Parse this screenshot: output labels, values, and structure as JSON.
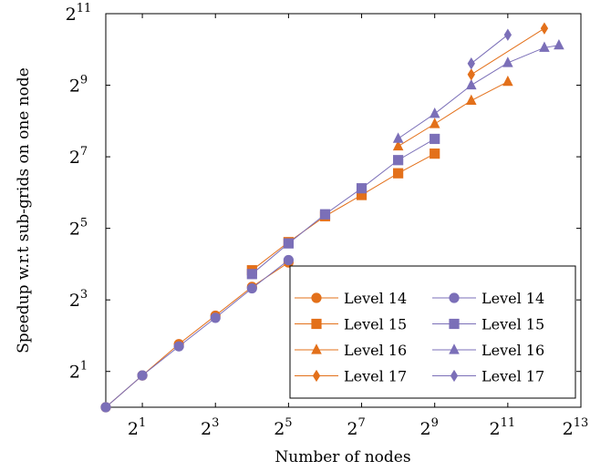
{
  "chart_data": {
    "type": "line",
    "xlabel": "Number of nodes",
    "ylabel": "Speedup w.r.t sub-grids on one node",
    "xscale": "log2",
    "yscale": "log2",
    "xlim_log2": [
      0,
      13
    ],
    "ylim_log2": [
      0,
      11
    ],
    "xticks": [
      {
        "base": "2",
        "exp": "1",
        "value": 2
      },
      {
        "base": "2",
        "exp": "3",
        "value": 8
      },
      {
        "base": "2",
        "exp": "5",
        "value": 32
      },
      {
        "base": "2",
        "exp": "7",
        "value": 128
      },
      {
        "base": "2",
        "exp": "9",
        "value": 512
      },
      {
        "base": "2",
        "exp": "11",
        "value": 2048
      },
      {
        "base": "2",
        "exp": "13",
        "value": 8192
      }
    ],
    "yticks": [
      {
        "base": "2",
        "exp": "1",
        "value": 2
      },
      {
        "base": "2",
        "exp": "3",
        "value": 8
      },
      {
        "base": "2",
        "exp": "5",
        "value": 32
      },
      {
        "base": "2",
        "exp": "7",
        "value": 128
      },
      {
        "base": "2",
        "exp": "9",
        "value": 512
      },
      {
        "base": "2",
        "exp": "11",
        "value": 2048
      }
    ],
    "grid": false,
    "legend_position": "bottom-right",
    "legend_columns": 2,
    "colors": {
      "orange": "#e3701a",
      "purple": "#7b6fb8"
    },
    "series": [
      {
        "name": "Level 14",
        "color": "#e3701a",
        "marker": "circle",
        "x": [
          1,
          2,
          4,
          8,
          16,
          32
        ],
        "y": [
          1,
          1.85,
          3.4,
          5.9,
          10.3,
          16.5
        ]
      },
      {
        "name": "Level 14",
        "color": "#7b6fb8",
        "marker": "circle",
        "x": [
          1,
          2,
          4,
          8,
          16,
          32
        ],
        "y": [
          1,
          1.85,
          3.25,
          5.65,
          10.0,
          17.3
        ]
      },
      {
        "name": "Level 15",
        "color": "#e3701a",
        "marker": "square",
        "x": [
          16,
          32,
          64,
          128,
          256,
          512
        ],
        "y": [
          14.2,
          24.5,
          40.5,
          61.0,
          93.0,
          136.0
        ]
      },
      {
        "name": "Level 15",
        "color": "#7b6fb8",
        "marker": "square",
        "x": [
          16,
          32,
          64,
          128,
          256,
          512
        ],
        "y": [
          13.2,
          23.9,
          42.0,
          69.5,
          120.0,
          181.0
        ]
      },
      {
        "name": "Level 16",
        "color": "#e3701a",
        "marker": "triangle",
        "x": [
          256,
          512,
          1024,
          2048
        ],
        "y": [
          157,
          242,
          380,
          548
        ]
      },
      {
        "name": "Level 16",
        "color": "#7b6fb8",
        "marker": "triangle",
        "x": [
          256,
          512,
          1024,
          2048,
          4096,
          5400
        ],
        "y": [
          182,
          295,
          512,
          790,
          1060,
          1110
        ]
      },
      {
        "name": "Level 17",
        "color": "#e3701a",
        "marker": "diamond",
        "x": [
          1024,
          4096
        ],
        "y": [
          630,
          1540
        ]
      },
      {
        "name": "Level 17",
        "color": "#7b6fb8",
        "marker": "diamond",
        "x": [
          1024,
          2048
        ],
        "y": [
          780,
          1360
        ]
      }
    ]
  }
}
